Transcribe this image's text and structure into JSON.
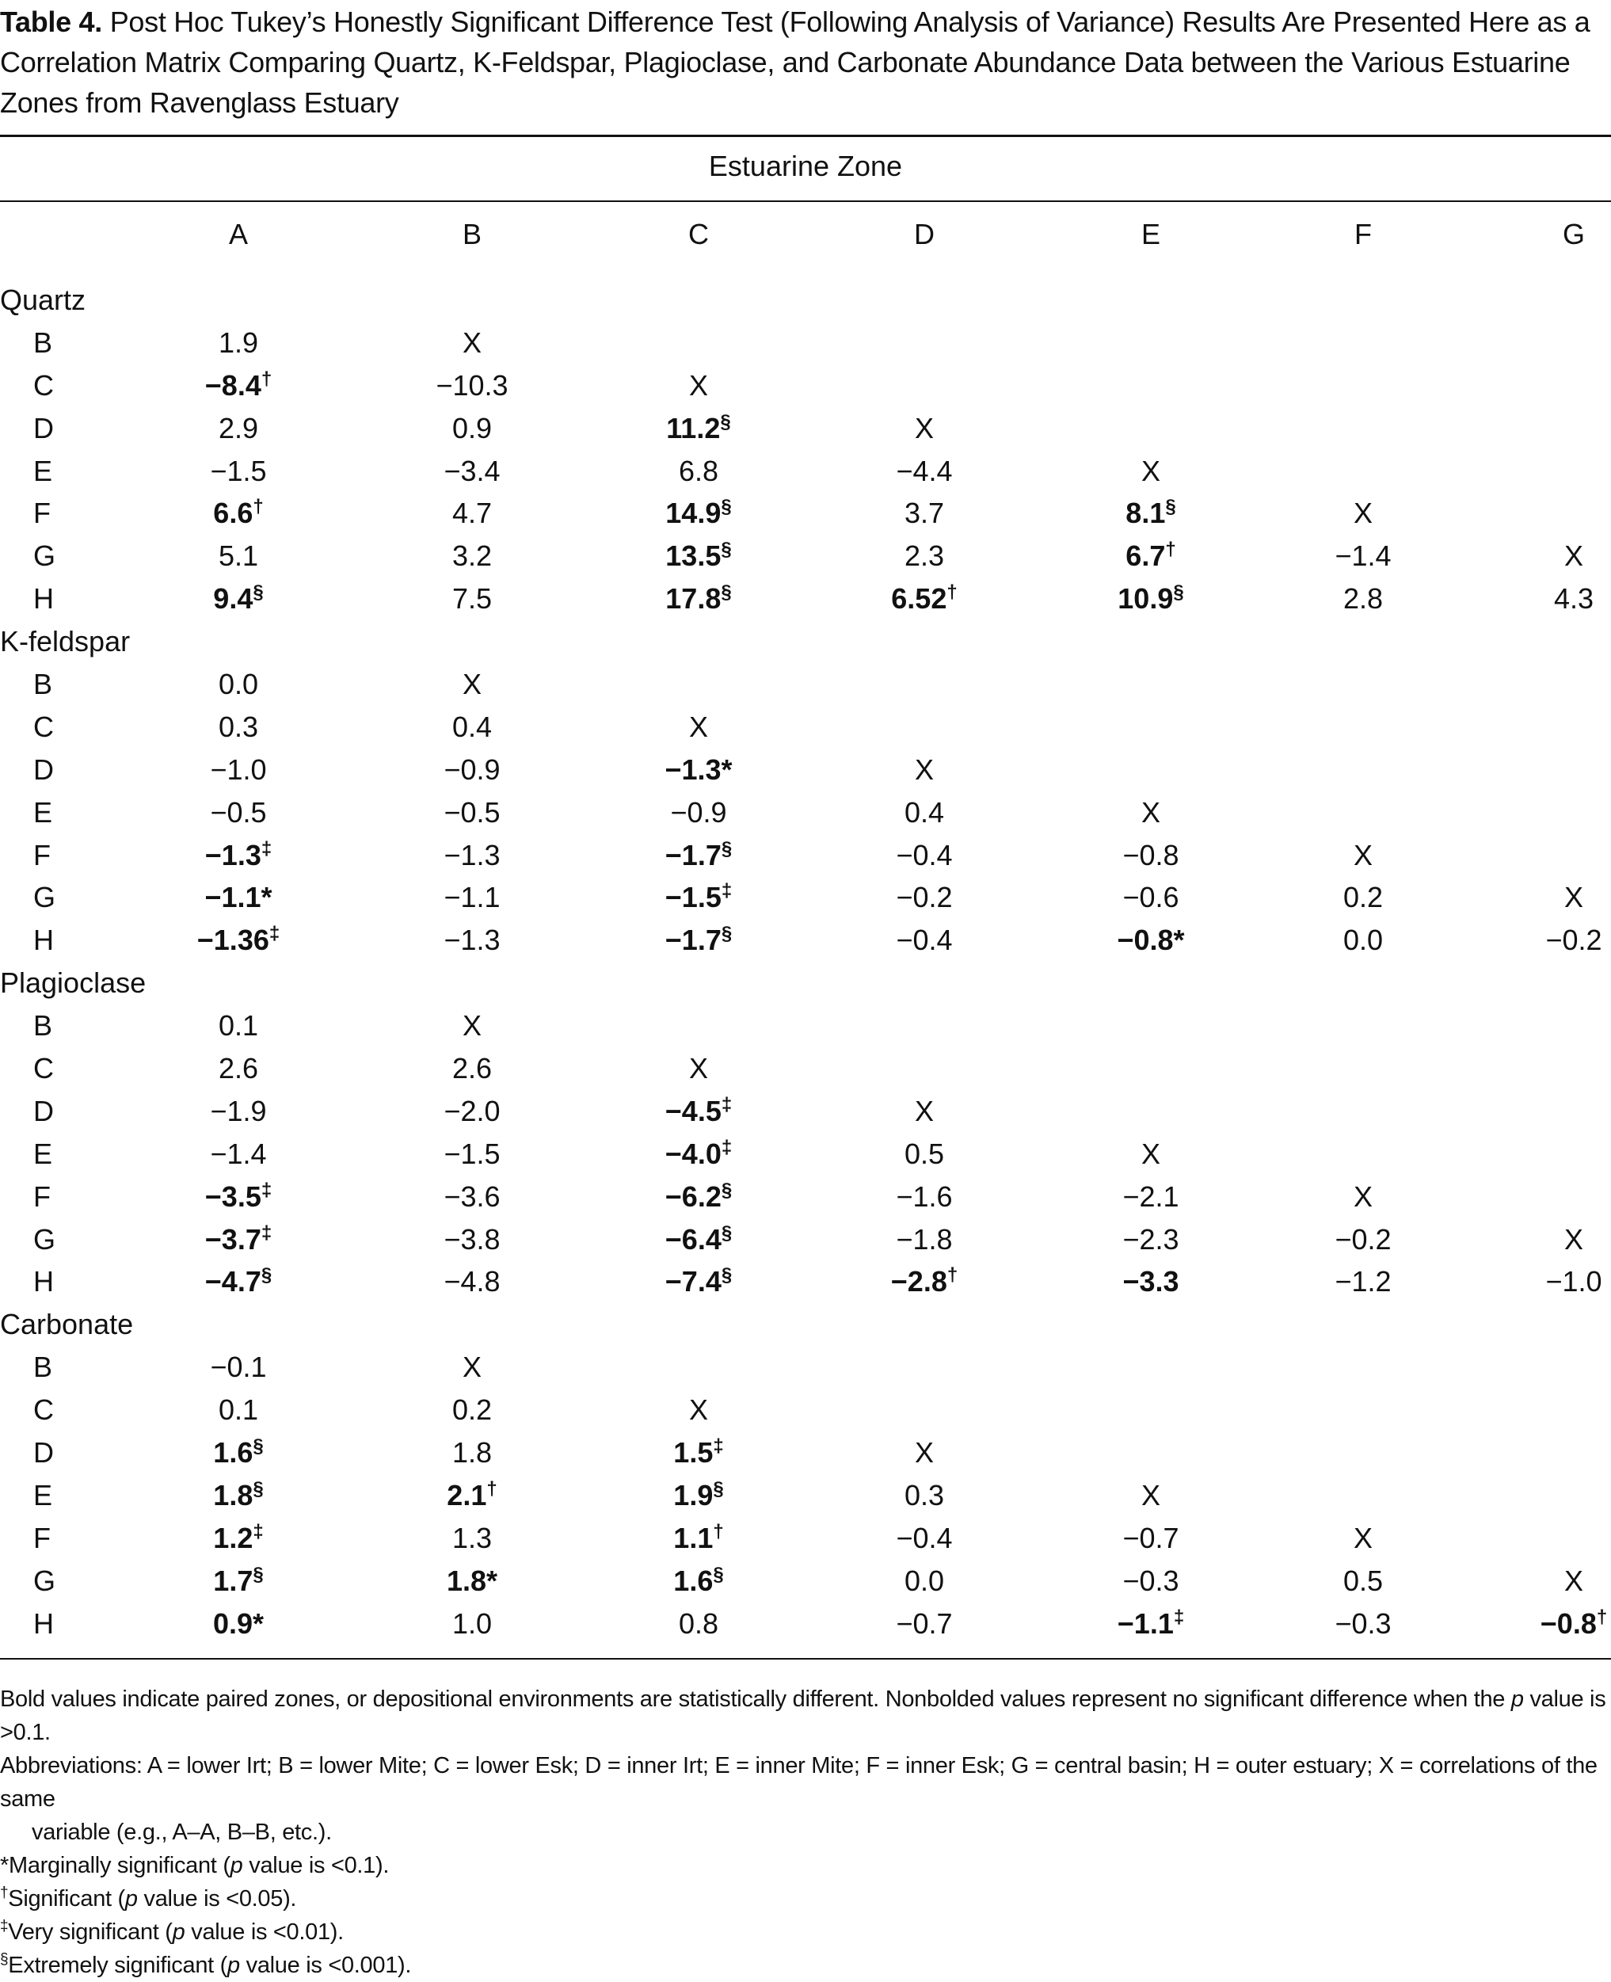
{
  "caption": {
    "number": "Table 4.",
    "text": "Post Hoc Tukey’s Honestly Significant Difference Test (Following Analysis of Variance) Results Are Presented Here as a Correlation Matrix Comparing Quartz, K-Feldspar, Plagioclase, and Carbonate Abundance Data between the Various Estuarine Zones from Ravenglass Estuary"
  },
  "table": {
    "zone_header": "Estuarine Zone",
    "columns": [
      "A",
      "B",
      "C",
      "D",
      "E",
      "F",
      "G"
    ],
    "groups": [
      {
        "name": "Quartz",
        "rows": [
          {
            "label": "B",
            "cells": [
              {
                "v": "1.9"
              },
              {
                "v": "X"
              }
            ]
          },
          {
            "label": "C",
            "cells": [
              {
                "v": "−8.4",
                "b": true,
                "s": "†"
              },
              {
                "v": "−10.3"
              },
              {
                "v": "X"
              }
            ]
          },
          {
            "label": "D",
            "cells": [
              {
                "v": "2.9"
              },
              {
                "v": "0.9"
              },
              {
                "v": "11.2",
                "b": true,
                "s": "§"
              },
              {
                "v": "X"
              }
            ]
          },
          {
            "label": "E",
            "cells": [
              {
                "v": "−1.5"
              },
              {
                "v": "−3.4"
              },
              {
                "v": "6.8"
              },
              {
                "v": "−4.4"
              },
              {
                "v": "X"
              }
            ]
          },
          {
            "label": "F",
            "cells": [
              {
                "v": "6.6",
                "b": true,
                "s": "†"
              },
              {
                "v": "4.7"
              },
              {
                "v": "14.9",
                "b": true,
                "s": "§"
              },
              {
                "v": "3.7"
              },
              {
                "v": "8.1",
                "b": true,
                "s": "§"
              },
              {
                "v": "X"
              }
            ]
          },
          {
            "label": "G",
            "cells": [
              {
                "v": "5.1"
              },
              {
                "v": "3.2"
              },
              {
                "v": "13.5",
                "b": true,
                "s": "§"
              },
              {
                "v": "2.3"
              },
              {
                "v": "6.7",
                "b": true,
                "s": "†"
              },
              {
                "v": "−1.4"
              },
              {
                "v": "X"
              }
            ]
          },
          {
            "label": "H",
            "cells": [
              {
                "v": "9.4",
                "b": true,
                "s": "§"
              },
              {
                "v": "7.5"
              },
              {
                "v": "17.8",
                "b": true,
                "s": "§"
              },
              {
                "v": "6.52",
                "b": true,
                "s": "†"
              },
              {
                "v": "10.9",
                "b": true,
                "s": "§"
              },
              {
                "v": "2.8"
              },
              {
                "v": "4.3"
              }
            ]
          }
        ]
      },
      {
        "name": "K-feldspar",
        "rows": [
          {
            "label": "B",
            "cells": [
              {
                "v": "0.0"
              },
              {
                "v": "X"
              }
            ]
          },
          {
            "label": "C",
            "cells": [
              {
                "v": "0.3"
              },
              {
                "v": "0.4"
              },
              {
                "v": "X"
              }
            ]
          },
          {
            "label": "D",
            "cells": [
              {
                "v": "−1.0"
              },
              {
                "v": "−0.9"
              },
              {
                "v": "−1.3*",
                "b": true
              },
              {
                "v": "X"
              }
            ]
          },
          {
            "label": "E",
            "cells": [
              {
                "v": "−0.5"
              },
              {
                "v": "−0.5"
              },
              {
                "v": "−0.9"
              },
              {
                "v": "0.4"
              },
              {
                "v": "X"
              }
            ]
          },
          {
            "label": "F",
            "cells": [
              {
                "v": "−1.3",
                "b": true,
                "s": "‡"
              },
              {
                "v": "−1.3"
              },
              {
                "v": "−1.7",
                "b": true,
                "s": "§"
              },
              {
                "v": "−0.4"
              },
              {
                "v": "−0.8"
              },
              {
                "v": "X"
              }
            ]
          },
          {
            "label": "G",
            "cells": [
              {
                "v": "−1.1*",
                "b": true
              },
              {
                "v": "−1.1"
              },
              {
                "v": "−1.5",
                "b": true,
                "s": "‡"
              },
              {
                "v": "−0.2"
              },
              {
                "v": "−0.6"
              },
              {
                "v": "0.2"
              },
              {
                "v": "X"
              }
            ]
          },
          {
            "label": "H",
            "cells": [
              {
                "v": "−1.36",
                "b": true,
                "s": "‡"
              },
              {
                "v": "−1.3"
              },
              {
                "v": "−1.7",
                "b": true,
                "s": "§"
              },
              {
                "v": "−0.4"
              },
              {
                "v": "−0.8*",
                "b": true
              },
              {
                "v": "0.0"
              },
              {
                "v": "−0.2"
              }
            ]
          }
        ]
      },
      {
        "name": "Plagioclase",
        "rows": [
          {
            "label": "B",
            "cells": [
              {
                "v": "0.1"
              },
              {
                "v": "X"
              }
            ]
          },
          {
            "label": "C",
            "cells": [
              {
                "v": "2.6"
              },
              {
                "v": "2.6"
              },
              {
                "v": "X"
              }
            ]
          },
          {
            "label": "D",
            "cells": [
              {
                "v": "−1.9"
              },
              {
                "v": "−2.0"
              },
              {
                "v": "−4.5",
                "b": true,
                "s": "‡"
              },
              {
                "v": "X"
              }
            ]
          },
          {
            "label": "E",
            "cells": [
              {
                "v": "−1.4"
              },
              {
                "v": "−1.5"
              },
              {
                "v": "−4.0",
                "b": true,
                "s": "‡"
              },
              {
                "v": "0.5"
              },
              {
                "v": "X"
              }
            ]
          },
          {
            "label": "F",
            "cells": [
              {
                "v": "−3.5",
                "b": true,
                "s": "‡"
              },
              {
                "v": "−3.6"
              },
              {
                "v": "−6.2",
                "b": true,
                "s": "§"
              },
              {
                "v": "−1.6"
              },
              {
                "v": "−2.1"
              },
              {
                "v": "X"
              }
            ]
          },
          {
            "label": "G",
            "cells": [
              {
                "v": "−3.7",
                "b": true,
                "s": "‡"
              },
              {
                "v": "−3.8"
              },
              {
                "v": "−6.4",
                "b": true,
                "s": "§"
              },
              {
                "v": "−1.8"
              },
              {
                "v": "−2.3"
              },
              {
                "v": "−0.2"
              },
              {
                "v": "X"
              }
            ]
          },
          {
            "label": "H",
            "cells": [
              {
                "v": "−4.7",
                "b": true,
                "s": "§"
              },
              {
                "v": "−4.8"
              },
              {
                "v": "−7.4",
                "b": true,
                "s": "§"
              },
              {
                "v": "−2.8",
                "b": true,
                "s": "†"
              },
              {
                "v": "−3.3",
                "b": true
              },
              {
                "v": "−1.2"
              },
              {
                "v": "−1.0"
              }
            ]
          }
        ]
      },
      {
        "name": "Carbonate",
        "rows": [
          {
            "label": "B",
            "cells": [
              {
                "v": "−0.1"
              },
              {
                "v": "X"
              }
            ]
          },
          {
            "label": "C",
            "cells": [
              {
                "v": "0.1"
              },
              {
                "v": "0.2"
              },
              {
                "v": "X"
              }
            ]
          },
          {
            "label": "D",
            "cells": [
              {
                "v": "1.6",
                "b": true,
                "s": "§"
              },
              {
                "v": "1.8"
              },
              {
                "v": "1.5",
                "b": true,
                "s": "‡"
              },
              {
                "v": "X"
              }
            ]
          },
          {
            "label": "E",
            "cells": [
              {
                "v": "1.8",
                "b": true,
                "s": "§"
              },
              {
                "v": "2.1",
                "b": true,
                "s": "†"
              },
              {
                "v": "1.9",
                "b": true,
                "s": "§"
              },
              {
                "v": "0.3"
              },
              {
                "v": "X"
              }
            ]
          },
          {
            "label": "F",
            "cells": [
              {
                "v": "1.2",
                "b": true,
                "s": "‡"
              },
              {
                "v": "1.3"
              },
              {
                "v": "1.1",
                "b": true,
                "s": "†"
              },
              {
                "v": "−0.4"
              },
              {
                "v": "−0.7"
              },
              {
                "v": "X"
              }
            ]
          },
          {
            "label": "G",
            "cells": [
              {
                "v": "1.7",
                "b": true,
                "s": "§"
              },
              {
                "v": "1.8*",
                "b": true
              },
              {
                "v": "1.6",
                "b": true,
                "s": "§"
              },
              {
                "v": "0.0"
              },
              {
                "v": "−0.3"
              },
              {
                "v": "0.5"
              },
              {
                "v": "X"
              }
            ]
          },
          {
            "label": "H",
            "cells": [
              {
                "v": "0.9*",
                "b": true
              },
              {
                "v": "1.0"
              },
              {
                "v": "0.8"
              },
              {
                "v": "−0.7"
              },
              {
                "v": "−1.1",
                "b": true,
                "s": "‡"
              },
              {
                "v": "−0.3"
              },
              {
                "v": "−0.8",
                "b": true,
                "s": "†"
              }
            ]
          }
        ]
      }
    ]
  },
  "notes": {
    "bold_a": "Bold values indicate paired zones, or depositional environments are statistically different. Nonbolded values represent no significant difference when the ",
    "p": "p",
    "bold_b": " value is >0.1.",
    "abbrev": "Abbreviations: A = lower Irt; B = lower Mite; C = lower Esk; D = inner Irt; E = inner Mite; F = inner Esk; G = central basin; H = outer estuary; X = correlations of the same",
    "abbrev_cont": "variable (e.g., A–A, B–B, etc.).",
    "marg_a": "*Marginally significant (",
    "marg_b": " value is <0.1).",
    "sig_mark": "†",
    "sig_a": "Significant (",
    "sig_b": " value is <0.05).",
    "very_mark": "‡",
    "very_a": "Very significant (",
    "very_b": " value is <0.01).",
    "ext_mark": "§",
    "ext_a": "Extremely significant (",
    "ext_b": " value is <0.001)."
  }
}
